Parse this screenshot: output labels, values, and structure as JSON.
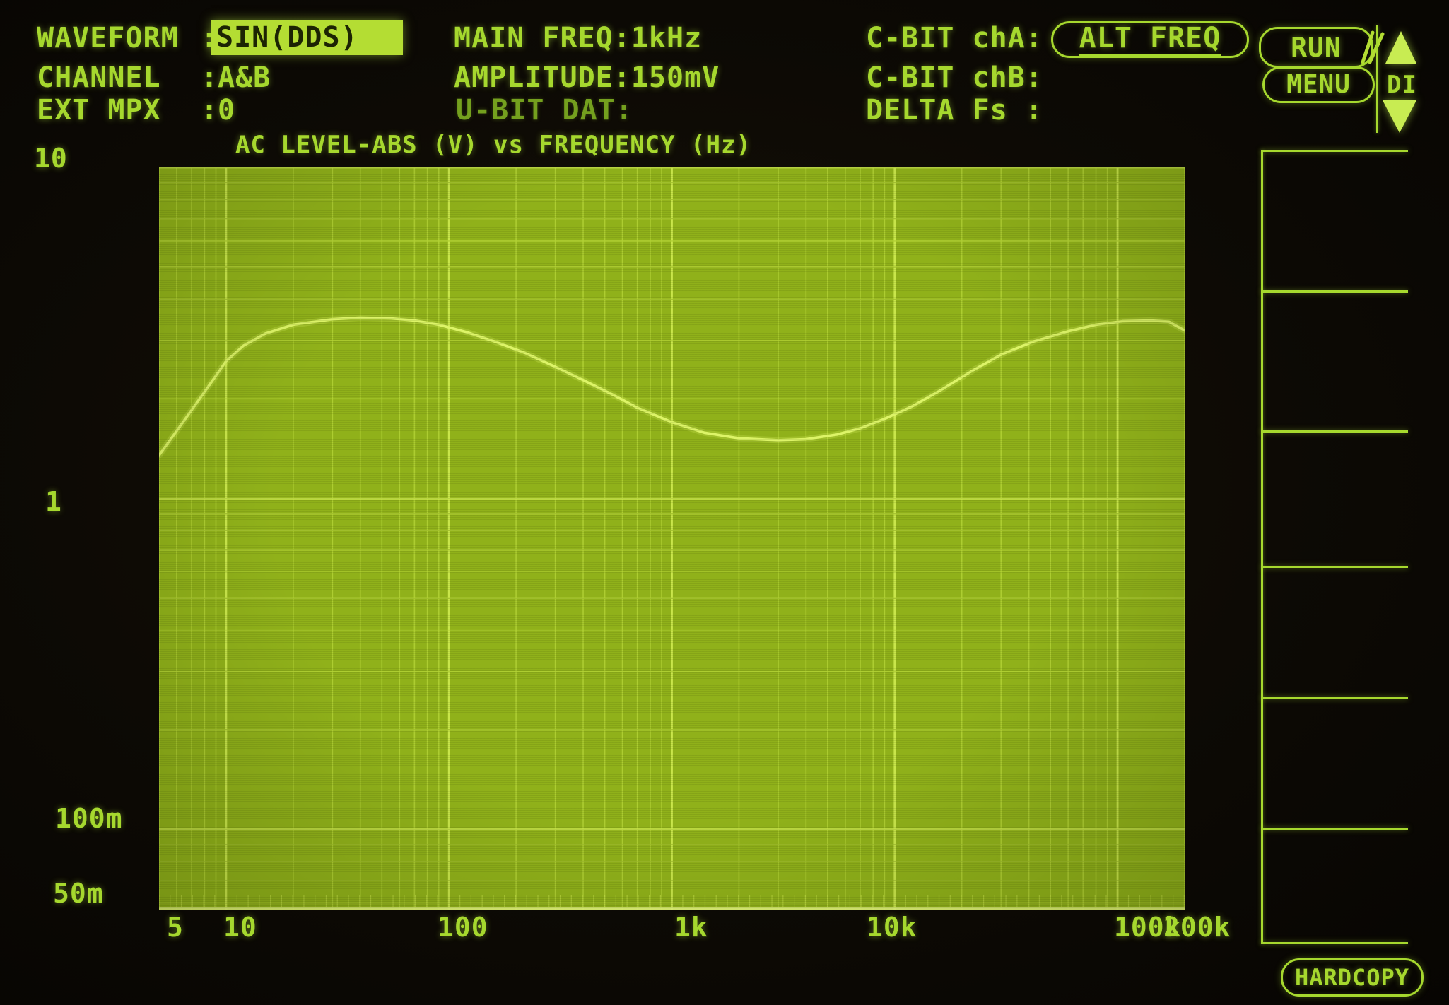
{
  "colors": {
    "phosphor": "#a6d82e",
    "phosphor_dim": "#74a01e",
    "phosphor_bright": "#c8ec52",
    "plot_bg": "#90b11a",
    "grid_minor": "#b3d236",
    "grid_major": "#cde94e",
    "curve": "#ddf468",
    "baseline": "#e6f87e",
    "highlight_bg": "#b4dd33",
    "highlight_text": "#1c2403"
  },
  "header": {
    "left": [
      {
        "label": "WAVEFORM",
        "sep": ":",
        "value": "SIN(DDS)"
      },
      {
        "label": "CHANNEL",
        "sep": ":",
        "value": "A&B"
      },
      {
        "label": "EXT MPX",
        "sep": ":",
        "value": "0"
      }
    ],
    "mid": [
      "MAIN FREQ:1kHz",
      "AMPLITUDE:150mV",
      "U-BIT DAT:"
    ],
    "right": [
      {
        "label": "C-BIT chA:",
        "value": "ALT FREQ"
      },
      {
        "label": "C-BIT chB:",
        "value": ""
      },
      {
        "label": "DELTA Fs :",
        "value": ""
      }
    ],
    "controls": {
      "run": "RUN",
      "menu": "MENU",
      "di": "DI",
      "hardcopy": "HARDCOPY"
    }
  },
  "chart": {
    "title": "AC LEVEL-ABS (V) vs FREQUENCY (Hz)",
    "y_ticks": [
      "10",
      "1",
      "100m",
      "50m"
    ],
    "x_ticks": [
      "5",
      "10",
      "100",
      "1k",
      "10k",
      "100k",
      "200k"
    ]
  },
  "chart_data": {
    "type": "line",
    "title": "AC LEVEL-ABS (V) vs FREQUENCY (Hz)",
    "xlabel": "FREQUENCY (Hz)",
    "ylabel": "AC LEVEL-ABS (V)",
    "x_axis": {
      "scale": "log",
      "min": 5,
      "max": 200000,
      "tick_labels": [
        "5",
        "10",
        "100",
        "1k",
        "10k",
        "100k",
        "200k"
      ]
    },
    "y_axis": {
      "scale": "log",
      "min": 0.057,
      "max": 10,
      "tick_labels": [
        "10",
        "1",
        "100m",
        "50m"
      ]
    },
    "grid": "log-log dense",
    "legend": "none",
    "series": [
      {
        "name": "AC LEVEL-ABS",
        "points": [
          [
            5,
            1.35
          ],
          [
            6,
            1.6
          ],
          [
            7,
            1.85
          ],
          [
            8,
            2.1
          ],
          [
            9,
            2.35
          ],
          [
            10,
            2.6
          ],
          [
            12,
            2.9
          ],
          [
            15,
            3.15
          ],
          [
            20,
            3.35
          ],
          [
            30,
            3.48
          ],
          [
            40,
            3.52
          ],
          [
            55,
            3.5
          ],
          [
            70,
            3.45
          ],
          [
            90,
            3.35
          ],
          [
            120,
            3.18
          ],
          [
            160,
            2.98
          ],
          [
            220,
            2.75
          ],
          [
            300,
            2.5
          ],
          [
            400,
            2.28
          ],
          [
            550,
            2.05
          ],
          [
            700,
            1.88
          ],
          [
            1000,
            1.7
          ],
          [
            1400,
            1.58
          ],
          [
            2000,
            1.52
          ],
          [
            3000,
            1.5
          ],
          [
            4000,
            1.51
          ],
          [
            5500,
            1.56
          ],
          [
            7000,
            1.63
          ],
          [
            9000,
            1.74
          ],
          [
            12000,
            1.9
          ],
          [
            16000,
            2.12
          ],
          [
            22000,
            2.42
          ],
          [
            30000,
            2.72
          ],
          [
            42000,
            2.98
          ],
          [
            60000,
            3.2
          ],
          [
            80000,
            3.35
          ],
          [
            105000,
            3.43
          ],
          [
            140000,
            3.45
          ],
          [
            170000,
            3.42
          ],
          [
            200000,
            3.22
          ]
        ]
      }
    ]
  }
}
